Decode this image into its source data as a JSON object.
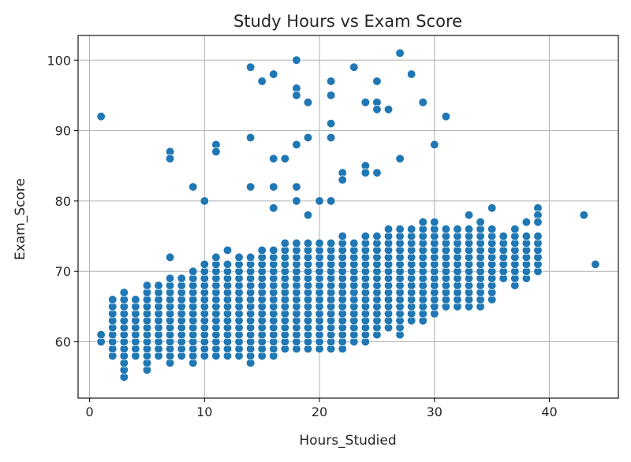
{
  "chart_data": {
    "type": "scatter",
    "title": "Study Hours vs Exam Score",
    "xlabel": "Hours_Studied",
    "ylabel": "Exam_Score",
    "xlim": [
      -1,
      46
    ],
    "ylim": [
      52,
      103.5
    ],
    "x_ticks": [
      0,
      10,
      20,
      30,
      40
    ],
    "y_ticks": [
      60,
      70,
      80,
      90,
      100
    ],
    "grid": true,
    "marker_color": "#1f77b4",
    "dense_band": {
      "x_range": [
        1,
        39
      ],
      "min": [
        [
          1,
          60
        ],
        [
          2,
          58
        ],
        [
          3,
          55
        ],
        [
          4,
          58
        ],
        [
          5,
          56
        ],
        [
          6,
          58
        ],
        [
          7,
          57
        ],
        [
          8,
          58
        ],
        [
          9,
          57
        ],
        [
          10,
          58
        ],
        [
          11,
          58
        ],
        [
          12,
          58
        ],
        [
          13,
          58
        ],
        [
          14,
          57
        ],
        [
          15,
          58
        ],
        [
          16,
          58
        ],
        [
          17,
          59
        ],
        [
          18,
          59
        ],
        [
          19,
          59
        ],
        [
          20,
          59
        ],
        [
          21,
          59
        ],
        [
          22,
          59
        ],
        [
          23,
          60
        ],
        [
          24,
          60
        ],
        [
          25,
          61
        ],
        [
          26,
          62
        ],
        [
          27,
          61
        ],
        [
          28,
          63
        ],
        [
          29,
          63
        ],
        [
          30,
          64
        ],
        [
          31,
          65
        ],
        [
          32,
          65
        ],
        [
          33,
          65
        ],
        [
          34,
          65
        ],
        [
          35,
          66
        ],
        [
          36,
          69
        ],
        [
          37,
          68
        ],
        [
          38,
          69
        ],
        [
          39,
          70
        ]
      ],
      "max": [
        [
          1,
          61
        ],
        [
          2,
          66
        ],
        [
          3,
          67
        ],
        [
          4,
          66
        ],
        [
          5,
          68
        ],
        [
          6,
          68
        ],
        [
          7,
          69
        ],
        [
          8,
          69
        ],
        [
          9,
          70
        ],
        [
          10,
          71
        ],
        [
          11,
          72
        ],
        [
          12,
          71
        ],
        [
          13,
          72
        ],
        [
          14,
          72
        ],
        [
          15,
          73
        ],
        [
          16,
          73
        ],
        [
          17,
          74
        ],
        [
          18,
          74
        ],
        [
          19,
          74
        ],
        [
          20,
          74
        ],
        [
          21,
          74
        ],
        [
          22,
          75
        ],
        [
          23,
          74
        ],
        [
          24,
          75
        ],
        [
          25,
          75
        ],
        [
          26,
          76
        ],
        [
          27,
          76
        ],
        [
          28,
          76
        ],
        [
          29,
          77
        ],
        [
          30,
          77
        ],
        [
          31,
          76
        ],
        [
          32,
          76
        ],
        [
          33,
          76
        ],
        [
          34,
          76
        ],
        [
          35,
          76
        ],
        [
          36,
          75
        ],
        [
          37,
          76
        ],
        [
          38,
          75
        ],
        [
          39,
          75
        ]
      ]
    },
    "points": [
      [
        1,
        92
      ],
      [
        7,
        87
      ],
      [
        7,
        86
      ],
      [
        7,
        72
      ],
      [
        9,
        82
      ],
      [
        10,
        80
      ],
      [
        11,
        88
      ],
      [
        11,
        87
      ],
      [
        12,
        73
      ],
      [
        14,
        99
      ],
      [
        14,
        89
      ],
      [
        14,
        82
      ],
      [
        15,
        97
      ],
      [
        16,
        98
      ],
      [
        16,
        86
      ],
      [
        16,
        82
      ],
      [
        16,
        79
      ],
      [
        17,
        86
      ],
      [
        18,
        100
      ],
      [
        18,
        96
      ],
      [
        18,
        95
      ],
      [
        18,
        88
      ],
      [
        18,
        82
      ],
      [
        18,
        80
      ],
      [
        19,
        94
      ],
      [
        19,
        89
      ],
      [
        19,
        78
      ],
      [
        20,
        80
      ],
      [
        21,
        97
      ],
      [
        21,
        95
      ],
      [
        21,
        91
      ],
      [
        21,
        89
      ],
      [
        21,
        80
      ],
      [
        22,
        84
      ],
      [
        22,
        83
      ],
      [
        23,
        99
      ],
      [
        24,
        94
      ],
      [
        24,
        85
      ],
      [
        24,
        84
      ],
      [
        25,
        97
      ],
      [
        25,
        94
      ],
      [
        25,
        93
      ],
      [
        25,
        84
      ],
      [
        26,
        93
      ],
      [
        27,
        101
      ],
      [
        27,
        86
      ],
      [
        28,
        98
      ],
      [
        29,
        94
      ],
      [
        30,
        88
      ],
      [
        31,
        92
      ],
      [
        33,
        78
      ],
      [
        34,
        77
      ],
      [
        35,
        79
      ],
      [
        38,
        77
      ],
      [
        39,
        79
      ],
      [
        39,
        78
      ],
      [
        39,
        77
      ],
      [
        43,
        78
      ],
      [
        44,
        71
      ]
    ]
  }
}
